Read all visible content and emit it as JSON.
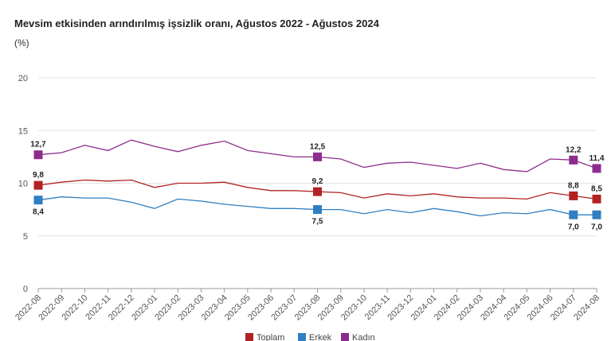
{
  "chart_data": {
    "type": "line",
    "title": "Mevsim etkisinden arındırılmış işsizlik oranı, Ağustos 2022 - Ağustos 2024",
    "unit": "(%)",
    "ylim": [
      0,
      20
    ],
    "yticks": [
      "0",
      "5",
      "10",
      "15",
      "20"
    ],
    "categories": [
      "2022-08",
      "2022-09",
      "2022-10",
      "2022-11",
      "2022-12",
      "2023-01",
      "2023-02",
      "2023-03",
      "2023-04",
      "2023-05",
      "2023-06",
      "2023-07",
      "2023-08",
      "2023-09",
      "2023-10",
      "2023-11",
      "2023-12",
      "2024-01",
      "2024-02",
      "2024-03",
      "2024-04",
      "2024-05",
      "2024-06",
      "2024-07",
      "2024-08"
    ],
    "series": [
      {
        "name": "Toplam",
        "color": "#b22222",
        "values": [
          9.8,
          10.1,
          10.3,
          10.2,
          10.3,
          9.6,
          10.0,
          10.0,
          10.1,
          9.6,
          9.3,
          9.3,
          9.2,
          9.1,
          8.6,
          9.0,
          8.8,
          9.0,
          8.7,
          8.6,
          8.6,
          8.5,
          9.1,
          8.8,
          8.5
        ],
        "markers": [
          {
            "i": 0,
            "label": "9,8"
          },
          {
            "i": 12,
            "label": "9,2"
          },
          {
            "i": 23,
            "label": "8,8"
          },
          {
            "i": 24,
            "label": "8,5"
          }
        ]
      },
      {
        "name": "Erkek",
        "color": "#2f7fc1",
        "values": [
          8.4,
          8.7,
          8.6,
          8.6,
          8.2,
          7.6,
          8.5,
          8.3,
          8.0,
          7.8,
          7.6,
          7.6,
          7.5,
          7.5,
          7.1,
          7.5,
          7.2,
          7.6,
          7.3,
          6.9,
          7.2,
          7.1,
          7.5,
          7.0,
          7.0
        ],
        "markers": [
          {
            "i": 0,
            "label": "8,4"
          },
          {
            "i": 12,
            "label": "7,5"
          },
          {
            "i": 23,
            "label": "7,0"
          },
          {
            "i": 24,
            "label": "7,0"
          }
        ]
      },
      {
        "name": "Kadın",
        "color": "#8e2c8e",
        "values": [
          12.7,
          12.9,
          13.6,
          13.1,
          14.1,
          13.5,
          13.0,
          13.6,
          14.0,
          13.1,
          12.8,
          12.5,
          12.5,
          12.3,
          11.5,
          11.9,
          12.0,
          11.7,
          11.4,
          11.9,
          11.3,
          11.1,
          12.3,
          12.2,
          11.4
        ],
        "markers": [
          {
            "i": 0,
            "label": "12,7"
          },
          {
            "i": 12,
            "label": "12,5"
          },
          {
            "i": 23,
            "label": "12,2"
          },
          {
            "i": 24,
            "label": "11,4"
          }
        ]
      }
    ]
  }
}
